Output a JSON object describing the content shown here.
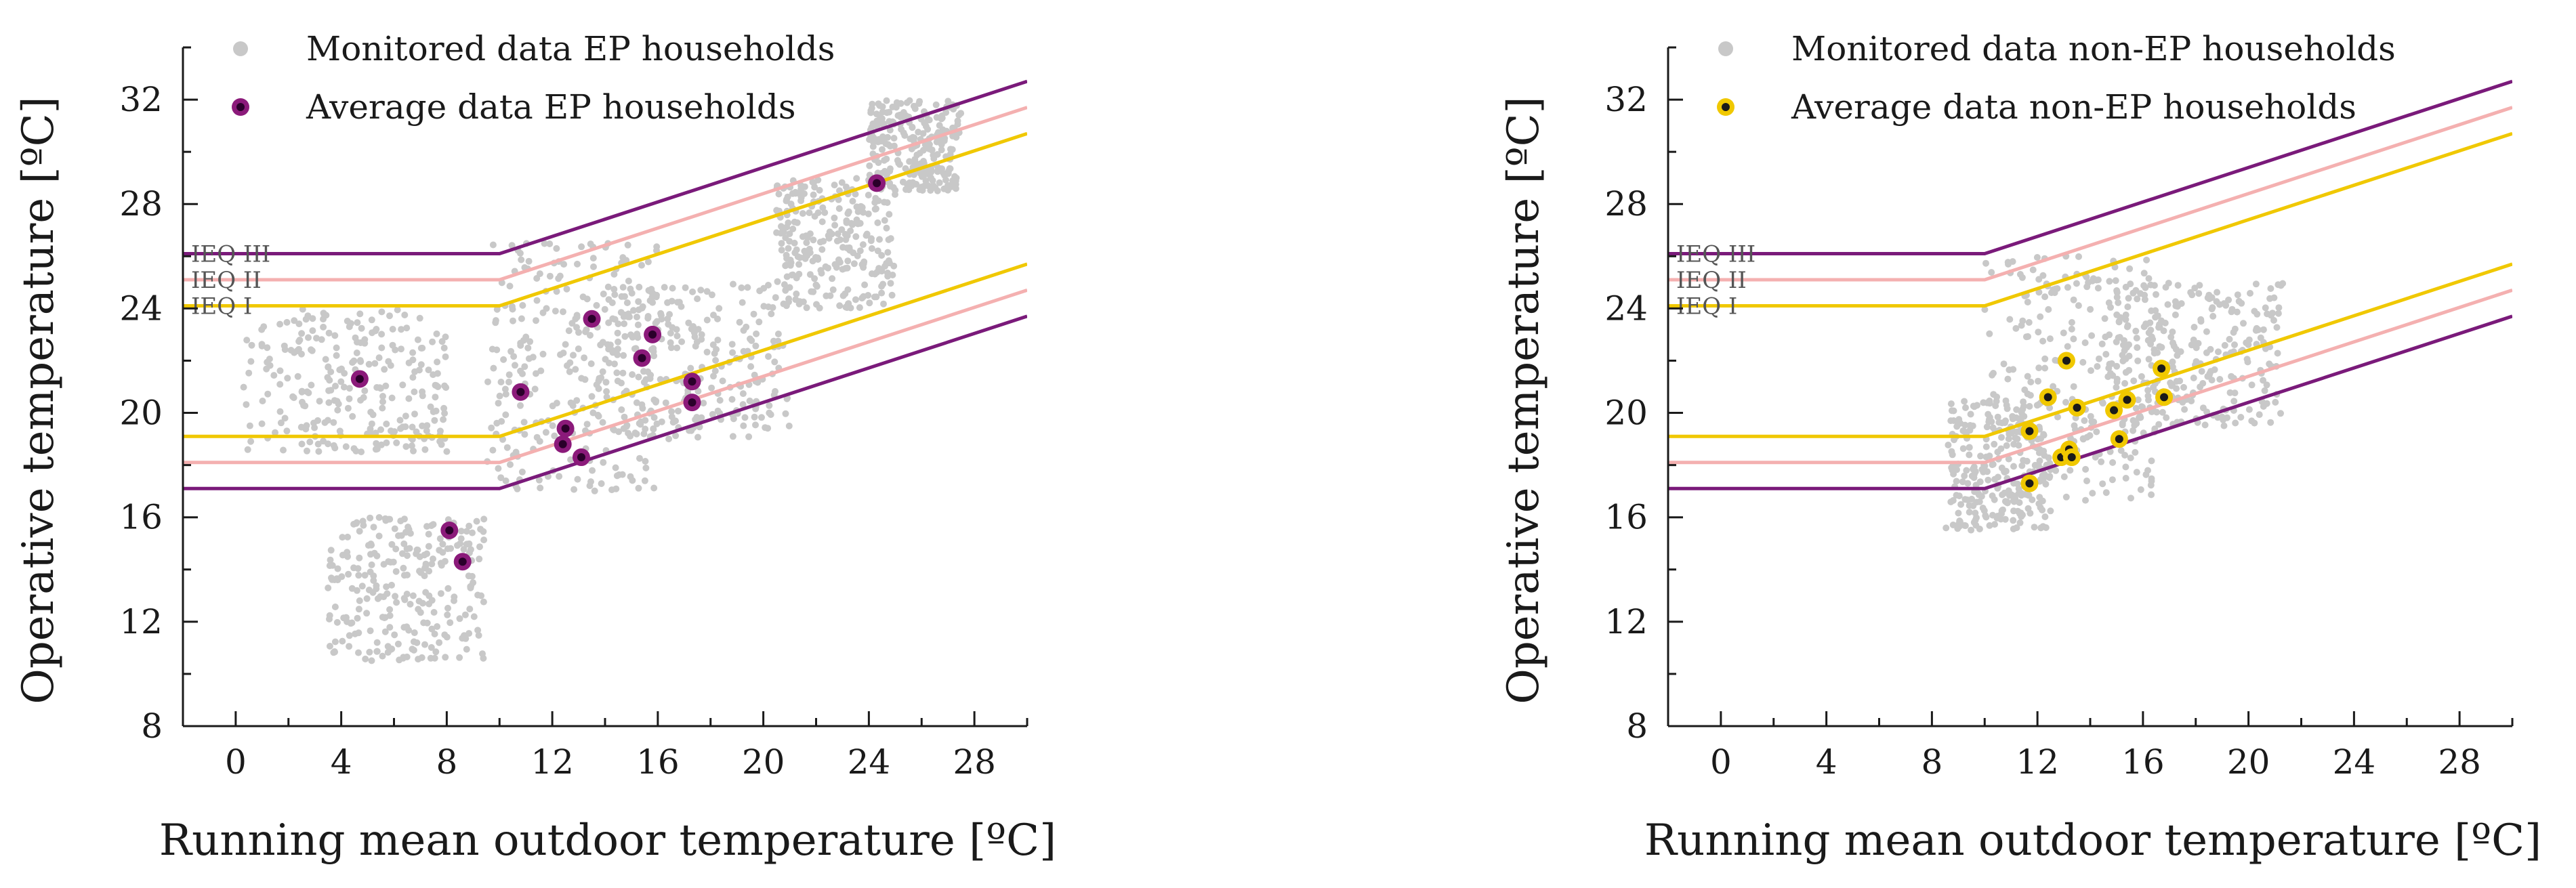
{
  "chart_data": [
    {
      "type": "scatter",
      "panel": "left",
      "xlabel": "Running mean outdoor temperature [ºC]",
      "ylabel": "Operative temperature [ºC]",
      "xlim": [
        -2,
        30
      ],
      "ylim": [
        8,
        34
      ],
      "xticks": [
        0,
        4,
        8,
        12,
        16,
        20,
        24,
        28
      ],
      "yticks": [
        8,
        12,
        16,
        20,
        24,
        28,
        32
      ],
      "legend": [
        {
          "label": "Monitored data EP households",
          "color": "#c8c8c8",
          "marker": "dot"
        },
        {
          "label": "Average data EP households",
          "color": "#8b1a7a",
          "marker": "ringed-dot"
        }
      ],
      "legend_position": "top-left",
      "zone_labels": [
        "IEQ III",
        "IEQ II",
        "IEQ I"
      ],
      "comfort_bands": [
        {
          "name": "IEQ I",
          "color": "#f0c800",
          "upper": [
            [
              -2,
              24.1
            ],
            [
              10,
              24.1
            ],
            [
              30,
              30.7
            ]
          ],
          "lower": [
            [
              -2,
              19.1
            ],
            [
              10,
              19.1
            ],
            [
              30,
              25.7
            ]
          ]
        },
        {
          "name": "IEQ II",
          "color": "#f4b0b0",
          "upper": [
            [
              -2,
              25.1
            ],
            [
              10,
              25.1
            ],
            [
              30,
              31.7
            ]
          ],
          "lower": [
            [
              -2,
              18.1
            ],
            [
              10,
              18.1
            ],
            [
              30,
              24.7
            ]
          ]
        },
        {
          "name": "IEQ III",
          "color": "#7a1a7a",
          "upper": [
            [
              -2,
              26.1
            ],
            [
              10,
              26.1
            ],
            [
              30,
              32.7
            ]
          ],
          "lower": [
            [
              -2,
              17.1
            ],
            [
              10,
              17.1
            ],
            [
              30,
              23.7
            ]
          ]
        }
      ],
      "monitored_clusters": [
        {
          "x": [
            0.3,
            8.0
          ],
          "y": [
            18.5,
            24.0
          ]
        },
        {
          "x": [
            3.5,
            9.5
          ],
          "y": [
            10.5,
            16.0
          ]
        },
        {
          "x": [
            9.5,
            16.0
          ],
          "y": [
            17.0,
            26.5
          ]
        },
        {
          "x": [
            14.0,
            21.0
          ],
          "y": [
            19.0,
            25.0
          ]
        },
        {
          "x": [
            20.5,
            25.0
          ],
          "y": [
            24.0,
            29.0
          ]
        },
        {
          "x": [
            24.0,
            27.5
          ],
          "y": [
            28.5,
            32.0
          ]
        }
      ],
      "series": [
        {
          "name": "Average data EP households",
          "x": [
            4.7,
            8.1,
            8.6,
            10.8,
            12.4,
            12.5,
            13.1,
            13.5,
            15.4,
            15.8,
            17.3,
            17.3,
            24.3
          ],
          "y": [
            21.3,
            15.5,
            14.3,
            20.8,
            18.8,
            19.4,
            18.3,
            23.6,
            22.1,
            23.0,
            21.2,
            20.4,
            28.8
          ]
        }
      ]
    },
    {
      "type": "scatter",
      "panel": "right",
      "xlabel": "Running mean outdoor temperature [ºC]",
      "ylabel": "Operative temperature [ºC]",
      "xlim": [
        -2,
        30
      ],
      "ylim": [
        8,
        34
      ],
      "xticks": [
        0,
        4,
        8,
        12,
        16,
        20,
        24,
        28
      ],
      "yticks": [
        8,
        12,
        16,
        20,
        24,
        28,
        32
      ],
      "legend": [
        {
          "label": "Monitored data non-EP households",
          "color": "#c8c8c8",
          "marker": "dot"
        },
        {
          "label": "Average data non-EP households",
          "color": "#f0c800",
          "marker": "ringed-dot"
        }
      ],
      "legend_position": "top-left",
      "zone_labels": [
        "IEQ III",
        "IEQ II",
        "IEQ I"
      ],
      "comfort_bands": [
        {
          "name": "IEQ I",
          "color": "#f0c800",
          "upper": [
            [
              -2,
              24.1
            ],
            [
              10,
              24.1
            ],
            [
              30,
              30.7
            ]
          ],
          "lower": [
            [
              -2,
              19.1
            ],
            [
              10,
              19.1
            ],
            [
              30,
              25.7
            ]
          ]
        },
        {
          "name": "IEQ II",
          "color": "#f4b0b0",
          "upper": [
            [
              -2,
              25.1
            ],
            [
              10,
              25.1
            ],
            [
              30,
              31.7
            ]
          ],
          "lower": [
            [
              -2,
              18.1
            ],
            [
              10,
              18.1
            ],
            [
              30,
              24.7
            ]
          ]
        },
        {
          "name": "IEQ III",
          "color": "#7a1a7a",
          "upper": [
            [
              -2,
              26.1
            ],
            [
              10,
              26.1
            ],
            [
              30,
              32.7
            ]
          ],
          "lower": [
            [
              -2,
              17.1
            ],
            [
              10,
              17.1
            ],
            [
              30,
              23.7
            ]
          ]
        }
      ],
      "monitored_clusters": [
        {
          "x": [
            8.5,
            12.5
          ],
          "y": [
            15.5,
            20.5
          ]
        },
        {
          "x": [
            10.0,
            16.5
          ],
          "y": [
            16.5,
            26.0
          ]
        },
        {
          "x": [
            15.0,
            21.3
          ],
          "y": [
            19.5,
            25.0
          ]
        }
      ],
      "series": [
        {
          "name": "Average data non-EP households",
          "x": [
            11.7,
            11.7,
            12.4,
            12.9,
            13.1,
            13.2,
            13.3,
            13.5,
            14.9,
            15.1,
            15.4,
            16.7,
            16.8
          ],
          "y": [
            19.3,
            17.3,
            20.6,
            18.3,
            22.0,
            18.6,
            18.3,
            20.2,
            20.1,
            19.0,
            20.5,
            21.7,
            20.6
          ]
        }
      ]
    }
  ]
}
